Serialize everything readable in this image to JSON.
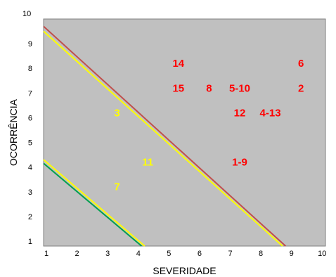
{
  "chart_data": {
    "type": "scatter",
    "title": "",
    "xlabel": "SEVERIDADE",
    "ylabel": "OCORRÊNCIA",
    "xlim": [
      1,
      10.2
    ],
    "ylim": [
      0.8,
      10
    ],
    "xticks": [
      "1",
      "2",
      "3",
      "4",
      "5",
      "6",
      "7",
      "8",
      "9",
      "10"
    ],
    "yticks": [
      "1",
      "2",
      "3",
      "4",
      "5",
      "6",
      "7",
      "8",
      "9",
      "10"
    ],
    "plot_background": "#c0c0c0",
    "grid": false,
    "points": [
      {
        "label": "14",
        "x": 5.4,
        "y": 8.2,
        "color": "#ff0000"
      },
      {
        "label": "6",
        "x": 9.4,
        "y": 8.2,
        "color": "#ff0000"
      },
      {
        "label": "15",
        "x": 5.4,
        "y": 7.2,
        "color": "#ff0000"
      },
      {
        "label": "8",
        "x": 6.4,
        "y": 7.2,
        "color": "#ff0000"
      },
      {
        "label": "5-10",
        "x": 7.4,
        "y": 7.2,
        "color": "#ff0000"
      },
      {
        "label": "2",
        "x": 9.4,
        "y": 7.2,
        "color": "#ff0000"
      },
      {
        "label": "3",
        "x": 3.4,
        "y": 6.2,
        "color": "#ffff00"
      },
      {
        "label": "12",
        "x": 7.4,
        "y": 6.2,
        "color": "#ff0000"
      },
      {
        "label": "4-13",
        "x": 8.4,
        "y": 6.2,
        "color": "#ff0000"
      },
      {
        "label": "11",
        "x": 4.4,
        "y": 4.2,
        "color": "#ffff00"
      },
      {
        "label": "1-9",
        "x": 7.4,
        "y": 4.2,
        "color": "#ff0000"
      },
      {
        "label": "7",
        "x": 3.4,
        "y": 3.2,
        "color": "#ffff00"
      }
    ],
    "lines": [
      {
        "color": "#c0504d",
        "x1": 1.0,
        "y1": 9.7,
        "x2": 8.9,
        "y2": 0.8
      },
      {
        "color": "#ffff00",
        "x1": 1.0,
        "y1": 9.5,
        "x2": 8.8,
        "y2": 0.8
      },
      {
        "color": "#ffff00",
        "x1": 1.0,
        "y1": 4.3,
        "x2": 4.3,
        "y2": 0.8
      },
      {
        "color": "#00a050",
        "x1": 1.0,
        "y1": 4.15,
        "x2": 4.2,
        "y2": 0.8
      }
    ]
  }
}
